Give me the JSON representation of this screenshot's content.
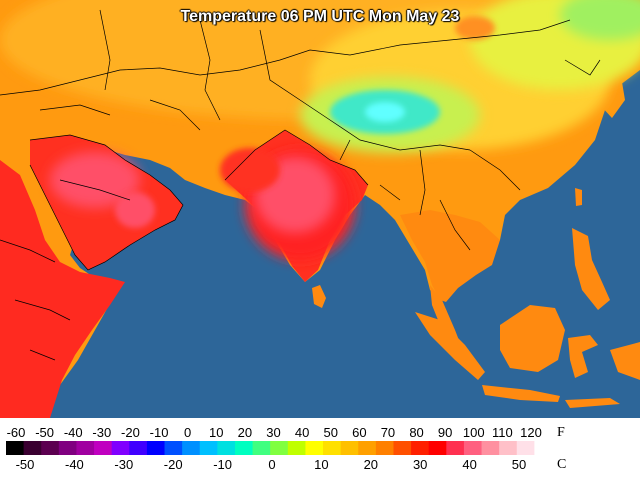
{
  "title": "Temperature 06 PM UTC Mon May 23",
  "legend": {
    "f_ticks": [
      "-60",
      "-50",
      "-40",
      "-30",
      "-20",
      "-10",
      "0",
      "10",
      "20",
      "30",
      "40",
      "50",
      "60",
      "70",
      "80",
      "90",
      "100",
      "110",
      "120"
    ],
    "c_ticks": [
      "-50",
      "-40",
      "-30",
      "-20",
      "-10",
      "0",
      "10",
      "20",
      "30",
      "40",
      "50"
    ],
    "f_unit": "F",
    "c_unit": "C",
    "colors": [
      "#000000",
      "#3a0030",
      "#5c0050",
      "#800080",
      "#a000a0",
      "#c000c0",
      "#8000ff",
      "#4000ff",
      "#0000ff",
      "#0050ff",
      "#0090ff",
      "#00c0ff",
      "#00e0e0",
      "#00ffc0",
      "#40ff80",
      "#80ff40",
      "#c0ff00",
      "#ffff00",
      "#ffe000",
      "#ffc000",
      "#ffa000",
      "#ff8000",
      "#ff5000",
      "#ff2000",
      "#ff0000",
      "#ff3050",
      "#ff6080",
      "#ff90a0",
      "#ffc0c8",
      "#ffe0e8",
      "#ffffff"
    ]
  },
  "colors": {
    "ocean": "#2d6699",
    "land_hot": "#ff8a10",
    "land_warm": "#ffaa10",
    "land_mild": "#ffd030",
    "land_cool": "#e8f040",
    "land_cold": "#a0f060",
    "plateau": "#40e8c8",
    "very_hot": "#ff2020",
    "extreme": "#ff5068"
  }
}
